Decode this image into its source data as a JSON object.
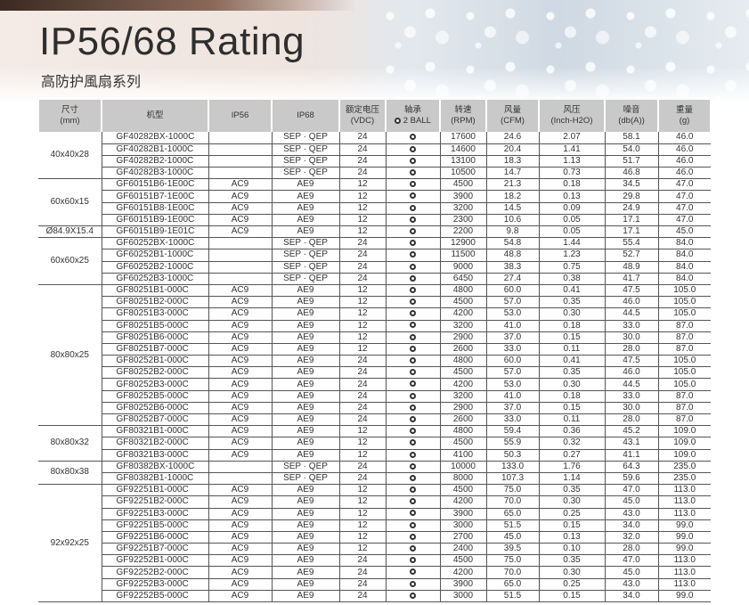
{
  "title": "IP56/68 Rating",
  "subtitle": "高防护風扇系列",
  "columns": [
    "尺寸\n(mm)",
    "机型",
    "IP56",
    "IP68",
    "额定电压\n(VDC)",
    "轴承\n2 BALL",
    "转速\n(RPM)",
    "风量\n(CFM)",
    "风压\n(Inch-H2O)",
    "噪音\n(db(A))",
    "重量\n(g)"
  ],
  "bearing_icon": "ball-bearing-icon",
  "groups": [
    {
      "size": "40x40x28",
      "rows": [
        [
          "GF40282BX-1000C",
          "",
          "SEP · QEP",
          "24",
          "17600",
          "24.6",
          "2.07",
          "58.1",
          "46.0"
        ],
        [
          "GF40282B1-1000C",
          "",
          "SEP · QEP",
          "24",
          "14600",
          "20.4",
          "1.41",
          "54.0",
          "46.0"
        ],
        [
          "GF40282B2-1000C",
          "",
          "SEP · QEP",
          "24",
          "13100",
          "18.3",
          "1.13",
          "51.7",
          "46.0"
        ],
        [
          "GF40282B3-1000C",
          "",
          "SEP · QEP",
          "24",
          "10500",
          "14.7",
          "0.73",
          "46.8",
          "46.0"
        ]
      ]
    },
    {
      "size": "60x60x15",
      "rows": [
        [
          "GF60151B6-1E00C",
          "AC9",
          "AE9",
          "12",
          "4500",
          "21.3",
          "0.18",
          "34.5",
          "47.0"
        ],
        [
          "GF60151B7-1E00C",
          "AC9",
          "AE9",
          "12",
          "3900",
          "18.2",
          "0.13",
          "29.8",
          "47.0"
        ],
        [
          "GF60151B8-1E00C",
          "AC9",
          "AE9",
          "12",
          "3200",
          "14.5",
          "0.09",
          "24.9",
          "47.0"
        ],
        [
          "GF60151B9-1E00C",
          "AC9",
          "AE9",
          "12",
          "2300",
          "10.6",
          "0.05",
          "17.1",
          "47.0"
        ]
      ]
    },
    {
      "size": "Ø84.9X15.4",
      "rows": [
        [
          "GF60151B9-1E01C",
          "AC9",
          "AE9",
          "12",
          "2200",
          "9.8",
          "0.05",
          "17.1",
          "45.0"
        ]
      ]
    },
    {
      "size": "60x60x25",
      "rows": [
        [
          "GF60252BX-1000C",
          "",
          "SEP · QEP",
          "24",
          "12900",
          "54.8",
          "1.44",
          "55.4",
          "84.0"
        ],
        [
          "GF60252B1-1000C",
          "",
          "SEP · QEP",
          "24",
          "11500",
          "48.8",
          "1.23",
          "52.7",
          "84.0"
        ],
        [
          "GF60252B2-1000C",
          "",
          "SEP · QEP",
          "24",
          "9000",
          "38.3",
          "0.75",
          "48.9",
          "84.0"
        ],
        [
          "GF60252B3-1000C",
          "",
          "SEP · QEP",
          "24",
          "6450",
          "27.4",
          "0.38",
          "41.7",
          "84.0"
        ]
      ]
    },
    {
      "size": "80x80x25",
      "rows": [
        [
          "GF80251B1-000C",
          "AC9",
          "AE9",
          "12",
          "4800",
          "60.0",
          "0.41",
          "47.5",
          "105.0"
        ],
        [
          "GF80251B2-000C",
          "AC9",
          "AE9",
          "12",
          "4500",
          "57.0",
          "0.35",
          "46.0",
          "105.0"
        ],
        [
          "GF80251B3-000C",
          "AC9",
          "AE9",
          "12",
          "4200",
          "53.0",
          "0.30",
          "44.5",
          "105.0"
        ],
        [
          "GF80251B5-000C",
          "AC9",
          "AE9",
          "12",
          "3200",
          "41.0",
          "0.18",
          "33.0",
          "87.0"
        ],
        [
          "GF80251B6-000C",
          "AC9",
          "AE9",
          "12",
          "2900",
          "37.0",
          "0.15",
          "30.0",
          "87.0"
        ],
        [
          "GF80251B7-000C",
          "AC9",
          "AE9",
          "12",
          "2600",
          "33.0",
          "0.11",
          "28.0",
          "87.0"
        ],
        [
          "GF80252B1-000C",
          "AC9",
          "AE9",
          "24",
          "4800",
          "60.0",
          "0.41",
          "47.5",
          "105.0"
        ],
        [
          "GF80252B2-000C",
          "AC9",
          "AE9",
          "24",
          "4500",
          "57.0",
          "0.35",
          "46.0",
          "105.0"
        ],
        [
          "GF80252B3-000C",
          "AC9",
          "AE9",
          "24",
          "4200",
          "53.0",
          "0.30",
          "44.5",
          "105.0"
        ],
        [
          "GF80252B5-000C",
          "AC9",
          "AE9",
          "24",
          "3200",
          "41.0",
          "0.18",
          "33.0",
          "87.0"
        ],
        [
          "GF80252B6-000C",
          "AC9",
          "AE9",
          "24",
          "2900",
          "37.0",
          "0.15",
          "30.0",
          "87.0"
        ],
        [
          "GF80252B7-000C",
          "AC9",
          "AE9",
          "24",
          "2600",
          "33.0",
          "0.11",
          "28.0",
          "87.0"
        ]
      ]
    },
    {
      "size": "80x80x32",
      "rows": [
        [
          "GF80321B1-000C",
          "AC9",
          "AE9",
          "12",
          "4800",
          "59.4",
          "0.36",
          "45.2",
          "109.0"
        ],
        [
          "GF80321B2-000C",
          "AC9",
          "AE9",
          "12",
          "4500",
          "55.9",
          "0.32",
          "43.1",
          "109.0"
        ],
        [
          "GF80321B3-000C",
          "AC9",
          "AE9",
          "12",
          "4100",
          "50.3",
          "0.27",
          "41.1",
          "109.0"
        ]
      ]
    },
    {
      "size": "80x80x38",
      "rows": [
        [
          "GF80382BX-1000C",
          "",
          "SEP · QEP",
          "24",
          "10000",
          "133.0",
          "1.76",
          "64.3",
          "235.0"
        ],
        [
          "GF80382B1-1000C",
          "",
          "SEP · QEP",
          "24",
          "8000",
          "107.3",
          "1.14",
          "59.6",
          "235.0"
        ]
      ]
    },
    {
      "size": "92x92x25",
      "rows": [
        [
          "GF92251B1-000C",
          "AC9",
          "AE9",
          "12",
          "4500",
          "75.0",
          "0.35",
          "47.0",
          "113.0"
        ],
        [
          "GF92251B2-000C",
          "AC9",
          "AE9",
          "12",
          "4200",
          "70.0",
          "0.30",
          "45.0",
          "113.0"
        ],
        [
          "GF92251B3-000C",
          "AC9",
          "AE9",
          "12",
          "3900",
          "65.0",
          "0.25",
          "43.0",
          "113.0"
        ],
        [
          "GF92251B5-000C",
          "AC9",
          "AE9",
          "12",
          "3000",
          "51.5",
          "0.15",
          "34.0",
          "99.0"
        ],
        [
          "GF92251B6-000C",
          "AC9",
          "AE9",
          "12",
          "2700",
          "45.0",
          "0.13",
          "32.0",
          "99.0"
        ],
        [
          "GF92251B7-000C",
          "AC9",
          "AE9",
          "12",
          "2400",
          "39.5",
          "0.10",
          "28.0",
          "99.0"
        ],
        [
          "GF92252B1-000C",
          "AC9",
          "AE9",
          "24",
          "4500",
          "75.0",
          "0.35",
          "47.0",
          "113.0"
        ],
        [
          "GF92252B2-000C",
          "AC9",
          "AE9",
          "24",
          "4200",
          "70.0",
          "0.30",
          "45.0",
          "113.0"
        ],
        [
          "GF92252B3-000C",
          "AC9",
          "AE9",
          "24",
          "3900",
          "65.0",
          "0.25",
          "43.0",
          "113.0"
        ],
        [
          "GF92252B5-000C",
          "AC9",
          "AE9",
          "24",
          "3000",
          "51.5",
          "0.15",
          "34.0",
          "99.0"
        ]
      ]
    }
  ]
}
